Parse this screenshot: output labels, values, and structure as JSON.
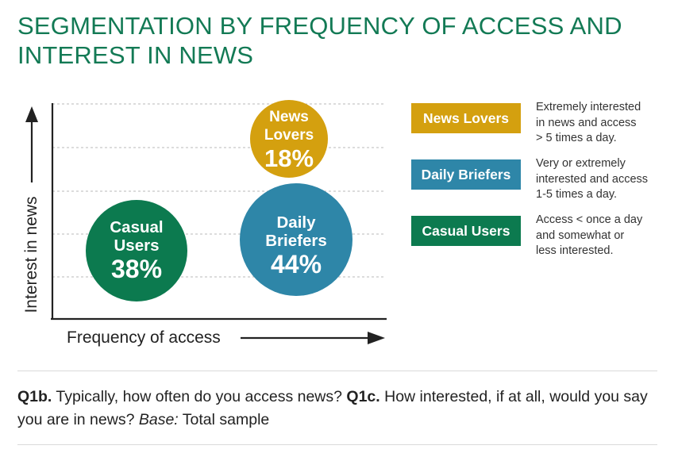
{
  "title": "SEGMENTATION BY FREQUENCY OF ACCESS AND INTEREST IN NEWS",
  "chart_data": {
    "type": "bubble",
    "xlabel": "Frequency of access",
    "ylabel": "Interest in news",
    "grid": true,
    "legend_placement": "right",
    "series": [
      {
        "name": "News Lovers",
        "label": "News\nLovers",
        "value_label": "18%",
        "share": 18,
        "color": "#d4a00f"
      },
      {
        "name": "Daily Briefers",
        "label": "Daily\nBriefers",
        "value_label": "44%",
        "share": 44,
        "color": "#2e86a8"
      },
      {
        "name": "Casual Users",
        "label": "Casual\nUsers",
        "value_label": "38%",
        "share": 38,
        "color": "#0c7a4f"
      }
    ]
  },
  "legend": [
    {
      "label": "News Lovers",
      "color": "#d4a00f",
      "description": [
        "Extremely interested",
        "in news and access",
        "> 5 times a day."
      ]
    },
    {
      "label": "Daily Briefers",
      "color": "#2e86a8",
      "description": [
        "Very or extremely",
        "interested and access",
        "1-5 times a day."
      ]
    },
    {
      "label": "Casual Users",
      "color": "#0c7a4f",
      "description": [
        "Access < once a day",
        "and somewhat or",
        "less interested."
      ]
    }
  ],
  "footnote": {
    "q1_code": "Q1b.",
    "q1_text": " Typically, how often do you access news? ",
    "q2_code": "Q1c.",
    "q2_text": " How interested, if at all, would you say you are in news? ",
    "base_label": "Base:",
    "base_text": " Total sample"
  }
}
